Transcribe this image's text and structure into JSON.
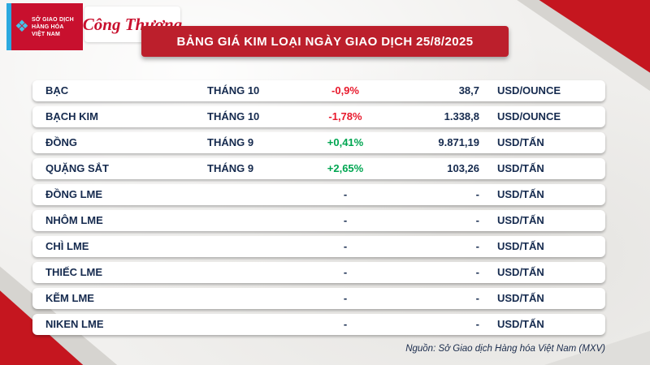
{
  "meta": {
    "colors": {
      "banner_bg": "#bc1f2c",
      "accent_red": "#c5161f",
      "logo_red": "#c8102e",
      "logo_blue": "#2aa9df",
      "text_navy": "#152a4e",
      "negative": "#e8192c",
      "positive": "#00a651",
      "page_bg": "#f1f0ee"
    }
  },
  "header": {
    "mxv_org": "SỞ GIAO DỊCH\nHÀNG HÓA\nVIỆT NAM",
    "mxv_icon": "mxv-diamond-icon",
    "congthuong_logo": "Công Thương",
    "banner_title": "BẢNG GIÁ KIM LOẠI NGÀY GIAO DỊCH 25/8/2025"
  },
  "table": {
    "rows": [
      {
        "name": "BẠC",
        "month": "THÁNG 10",
        "change": "-0,9%",
        "trend": "down",
        "price": "38,7",
        "unit": "USD/OUNCE"
      },
      {
        "name": "BẠCH KIM",
        "month": "THÁNG 10",
        "change": "-1,78%",
        "trend": "down",
        "price": "1.338,8",
        "unit": "USD/OUNCE"
      },
      {
        "name": "ĐỒNG",
        "month": "THÁNG 9",
        "change": "+0,41%",
        "trend": "up",
        "price": "9.871,19",
        "unit": "USD/TẤN"
      },
      {
        "name": "QUẶNG SẮT",
        "month": "THÁNG 9",
        "change": "+2,65%",
        "trend": "up",
        "price": "103,26",
        "unit": "USD/TẤN"
      },
      {
        "name": "ĐỒNG LME",
        "month": "",
        "change": "-",
        "trend": "none",
        "price": "-",
        "unit": "USD/TẤN"
      },
      {
        "name": "NHÔM LME",
        "month": "",
        "change": "-",
        "trend": "none",
        "price": "-",
        "unit": "USD/TẤN"
      },
      {
        "name": "CHÌ LME",
        "month": "",
        "change": "-",
        "trend": "none",
        "price": "-",
        "unit": "USD/TẤN"
      },
      {
        "name": "THIẾC LME",
        "month": "",
        "change": "-",
        "trend": "none",
        "price": "-",
        "unit": "USD/TẤN"
      },
      {
        "name": "KẼM LME",
        "month": "",
        "change": "-",
        "trend": "none",
        "price": "-",
        "unit": "USD/TẤN"
      },
      {
        "name": "NIKEN LME",
        "month": "",
        "change": "-",
        "trend": "none",
        "price": "-",
        "unit": "USD/TẤN"
      }
    ]
  },
  "footer": {
    "source": "Nguồn: Sở Giao dịch Hàng hóa Việt Nam (MXV)"
  },
  "chart_data": {
    "type": "table",
    "title": "BẢNG GIÁ KIM LOẠI NGÀY GIAO DỊCH 25/8/2025",
    "columns": [
      "commodity",
      "contract_month",
      "change_percent",
      "price",
      "unit"
    ],
    "rows": [
      [
        "BẠC",
        "THÁNG 10",
        "-0,9%",
        "38,7",
        "USD/OUNCE"
      ],
      [
        "BẠCH KIM",
        "THÁNG 10",
        "-1,78%",
        "1.338,8",
        "USD/OUNCE"
      ],
      [
        "ĐỒNG",
        "THÁNG 9",
        "+0,41%",
        "9.871,19",
        "USD/TẤN"
      ],
      [
        "QUẶNG SẮT",
        "THÁNG 9",
        "+2,65%",
        "103,26",
        "USD/TẤN"
      ],
      [
        "ĐỒNG LME",
        "",
        "-",
        "-",
        "USD/TẤN"
      ],
      [
        "NHÔM LME",
        "",
        "-",
        "-",
        "USD/TẤN"
      ],
      [
        "CHÌ LME",
        "",
        "-",
        "-",
        "USD/TẤN"
      ],
      [
        "THIẾC LME",
        "",
        "-",
        "-",
        "USD/TẤN"
      ],
      [
        "KẼM LME",
        "",
        "-",
        "-",
        "USD/TẤN"
      ],
      [
        "NIKEN LME",
        "",
        "-",
        "-",
        "USD/TẤN"
      ]
    ],
    "numeric": {
      "change_pct": [
        -0.9,
        -1.78,
        0.41,
        2.65,
        null,
        null,
        null,
        null,
        null,
        null
      ],
      "price": [
        38.7,
        1338.8,
        9871.19,
        103.26,
        null,
        null,
        null,
        null,
        null,
        null
      ]
    },
    "source": "Nguồn: Sở Giao dịch Hàng hóa Việt Nam (MXV)"
  }
}
